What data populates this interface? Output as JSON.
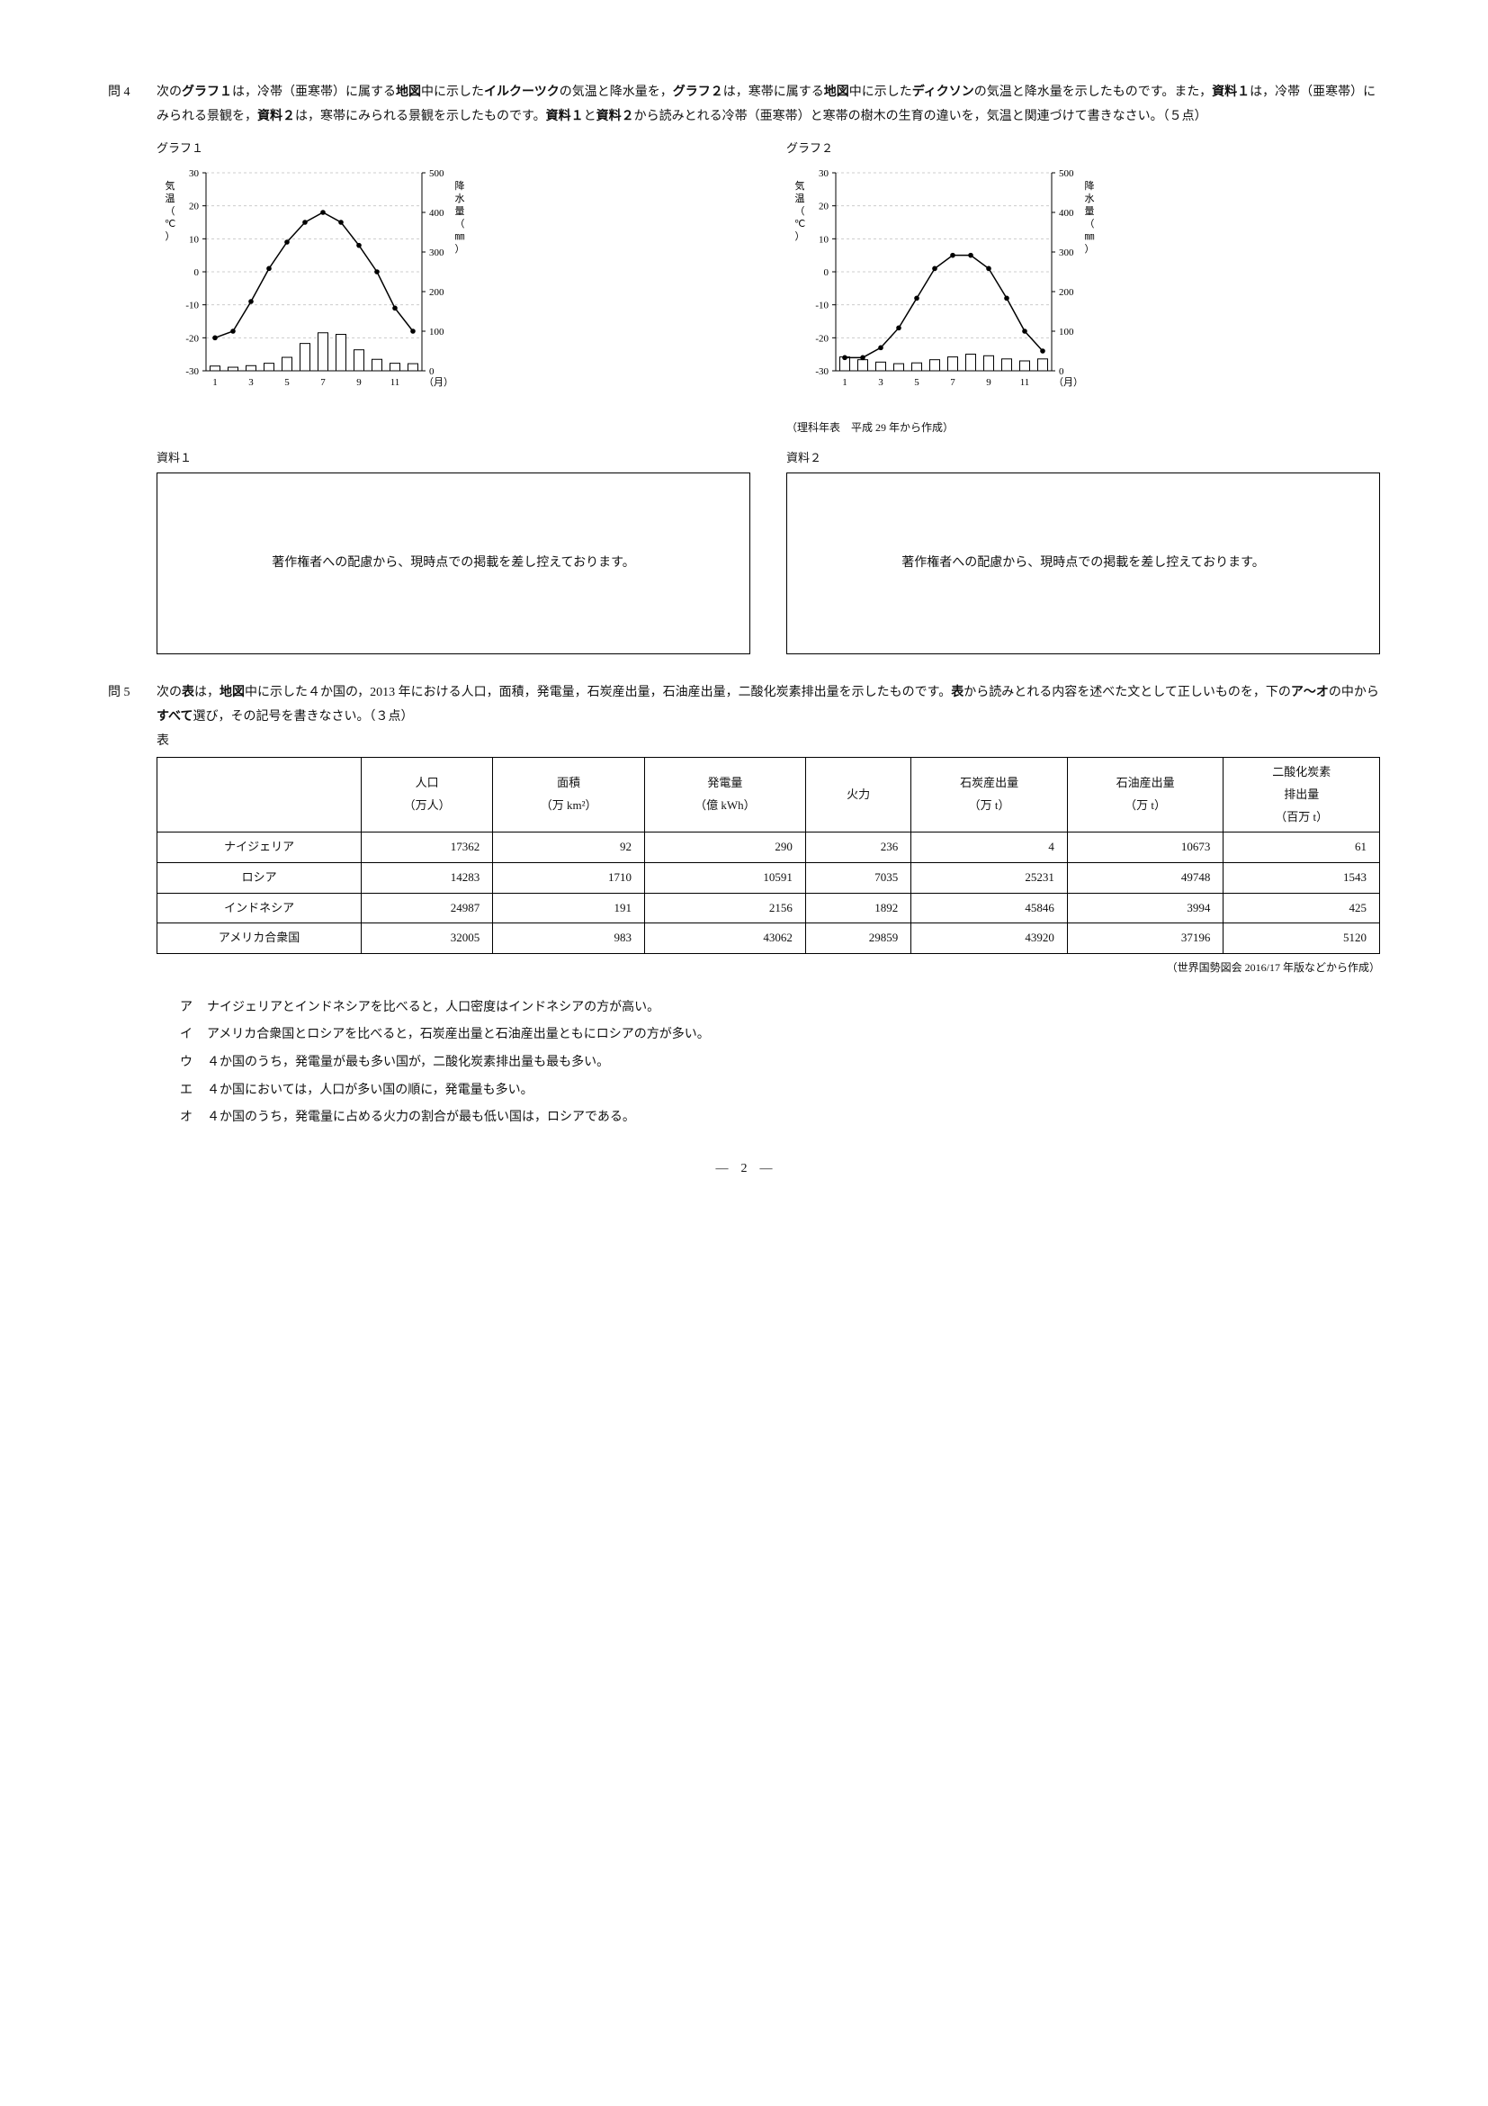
{
  "q4": {
    "num": "問 4",
    "text": "次の<b>グラフ１</b>は，冷帯（亜寒帯）に属する<b>地図</b>中に示した<b>イルクーツク</b>の気温と降水量を，<b>グラフ２</b>は，寒帯に属する<b>地図</b>中に示した<b>ディクソン</b>の気温と降水量を示したものです。また，<b>資料１</b>は，冷帯（亜寒帯）にみられる景観を，<b>資料２</b>は，寒帯にみられる景観を示したものです。<b>資料１</b>と<b>資料２</b>から読みとれる冷帯（亜寒帯）と寒帯の樹木の生育の違いを，気温と関連づけて書きなさい。（５点）",
    "chart1": {
      "title": "グラフ１",
      "yl_label": "気温（℃）",
      "yr_label": "降水量（㎜）",
      "x_label": "（月）",
      "x_vals": [
        "1",
        "3",
        "5",
        "7",
        "9",
        "11"
      ],
      "yl_min": -30,
      "yl_max": 30,
      "yl_step": 10,
      "yr_min": 0,
      "yr_max": 500,
      "yr_step": 100,
      "temps": [
        -20,
        -18,
        -9,
        1,
        9,
        15,
        18,
        15,
        8,
        0,
        -11,
        -18
      ],
      "precip": [
        12,
        9,
        13,
        19,
        34,
        69,
        96,
        92,
        53,
        29,
        19,
        18
      ]
    },
    "chart2": {
      "title": "グラフ２",
      "yl_label": "気温（℃）",
      "yr_label": "降水量（㎜）",
      "x_label": "（月）",
      "x_vals": [
        "1",
        "3",
        "5",
        "7",
        "9",
        "11"
      ],
      "yl_min": -30,
      "yl_max": 30,
      "yl_step": 10,
      "yr_min": 0,
      "yr_max": 500,
      "yr_step": 100,
      "temps": [
        -26,
        -26,
        -23,
        -17,
        -8,
        1,
        5,
        5,
        1,
        -8,
        -18,
        -24
      ],
      "precip": [
        35,
        28,
        22,
        18,
        20,
        28,
        35,
        42,
        38,
        30,
        25,
        30
      ]
    },
    "source_note": "（理科年表　平成 29 年から作成）",
    "res1": {
      "title": "資料１",
      "text": "著作権者への配慮から、現時点での掲載を差し控えております。"
    },
    "res2": {
      "title": "資料２",
      "text": "著作権者への配慮から、現時点での掲載を差し控えております。"
    }
  },
  "q5": {
    "num": "問 5",
    "text": "次の<b>表</b>は，<b>地図</b>中に示した４か国の，2013 年における人口，面積，発電量，石炭産出量，石油産出量，二酸化炭素排出量を示したものです。<b>表</b>から読みとれる内容を述べた文として正しいものを，下の<b>ア～オ</b>の中から<b>すべて</b>選び，その記号を書きなさい。（３点）",
    "table_caption": "表",
    "headers": [
      "",
      "人口\n（万人）",
      "面積\n（万 km²）",
      "発電量\n（億 kWh）",
      "火力",
      "石炭産出量\n（万 t）",
      "石油産出量\n（万 t）",
      "二酸化炭素\n排出量\n（百万 t）"
    ],
    "rows": [
      [
        "ナイジェリア",
        "17362",
        "92",
        "290",
        "236",
        "4",
        "10673",
        "61"
      ],
      [
        "ロシア",
        "14283",
        "1710",
        "10591",
        "7035",
        "25231",
        "49748",
        "1543"
      ],
      [
        "インドネシア",
        "24987",
        "191",
        "2156",
        "1892",
        "45846",
        "3994",
        "425"
      ],
      [
        "アメリカ合衆国",
        "32005",
        "983",
        "43062",
        "29859",
        "43920",
        "37196",
        "5120"
      ]
    ],
    "table_source": "（世界国勢図会 2016/17 年版などから作成）",
    "choices": [
      [
        "ア",
        "ナイジェリアとインドネシアを比べると，人口密度はインドネシアの方が高い。"
      ],
      [
        "イ",
        "アメリカ合衆国とロシアを比べると，石炭産出量と石油産出量ともにロシアの方が多い。"
      ],
      [
        "ウ",
        "４か国のうち，発電量が最も多い国が，二酸化炭素排出量も最も多い。"
      ],
      [
        "エ",
        "４か国においては，人口が多い国の順に，発電量も多い。"
      ],
      [
        "オ",
        "４か国のうち，発電量に占める火力の割合が最も低い国は，ロシアである。"
      ]
    ]
  },
  "pager": "—　2　—",
  "chart_style": {
    "axis_color": "#000",
    "grid_color": "#ccc",
    "line_color": "#000",
    "bar_fill": "#fff",
    "bar_stroke": "#000",
    "font_size_axis": 11
  }
}
